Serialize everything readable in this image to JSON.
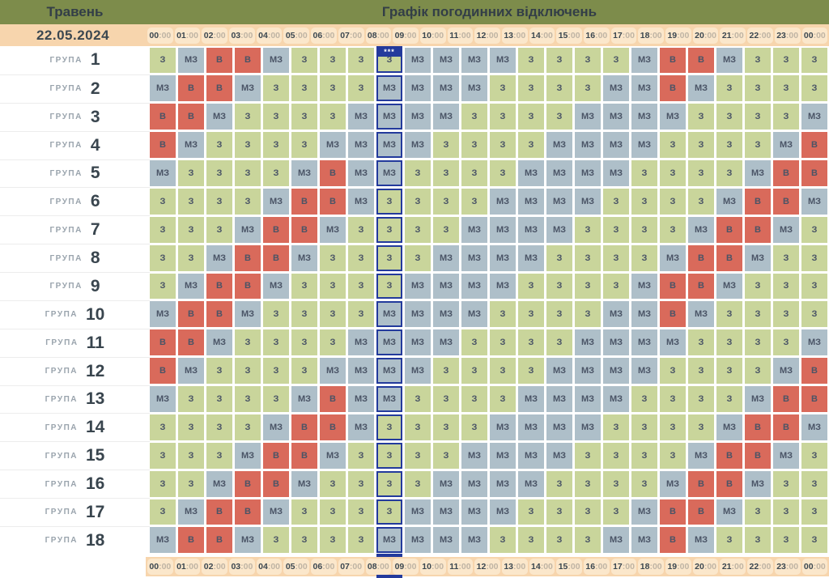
{
  "header": {
    "month": "Травень",
    "title": "Графік погодинних відключень"
  },
  "date": "22.05.2024",
  "hours": [
    "00:00",
    "01:00",
    "02:00",
    "03:00",
    "04:00",
    "05:00",
    "06:00",
    "07:00",
    "08:00",
    "09:00",
    "10:00",
    "11:00",
    "12:00",
    "13:00",
    "14:00",
    "15:00",
    "16:00",
    "17:00",
    "18:00",
    "19:00",
    "20:00",
    "21:00",
    "22:00",
    "23:00",
    "00:00"
  ],
  "highlight": {
    "hour_start": "08:00",
    "column_index": 8,
    "symbol": "***"
  },
  "group_label": "ГРУПА",
  "cell_values": {
    "available": "З",
    "maybe": "МЗ",
    "off": "В"
  },
  "groups": [
    {
      "number": "1",
      "cells": [
        "З",
        "МЗ",
        "В",
        "В",
        "МЗ",
        "З",
        "З",
        "З",
        "З",
        "МЗ",
        "МЗ",
        "МЗ",
        "МЗ",
        "З",
        "З",
        "З",
        "З",
        "МЗ",
        "В",
        "В",
        "МЗ",
        "З",
        "З",
        "З"
      ]
    },
    {
      "number": "2",
      "cells": [
        "МЗ",
        "В",
        "В",
        "МЗ",
        "З",
        "З",
        "З",
        "З",
        "МЗ",
        "МЗ",
        "МЗ",
        "МЗ",
        "З",
        "З",
        "З",
        "З",
        "МЗ",
        "МЗ",
        "В",
        "МЗ",
        "З",
        "З",
        "З",
        "З"
      ]
    },
    {
      "number": "3",
      "cells": [
        "В",
        "В",
        "МЗ",
        "З",
        "З",
        "З",
        "З",
        "МЗ",
        "МЗ",
        "МЗ",
        "МЗ",
        "З",
        "З",
        "З",
        "З",
        "МЗ",
        "МЗ",
        "МЗ",
        "МЗ",
        "З",
        "З",
        "З",
        "З",
        "МЗ"
      ]
    },
    {
      "number": "4",
      "cells": [
        "В",
        "МЗ",
        "З",
        "З",
        "З",
        "З",
        "МЗ",
        "МЗ",
        "МЗ",
        "МЗ",
        "З",
        "З",
        "З",
        "З",
        "МЗ",
        "МЗ",
        "МЗ",
        "МЗ",
        "З",
        "З",
        "З",
        "З",
        "МЗ",
        "В"
      ]
    },
    {
      "number": "5",
      "cells": [
        "МЗ",
        "З",
        "З",
        "З",
        "З",
        "МЗ",
        "В",
        "МЗ",
        "МЗ",
        "З",
        "З",
        "З",
        "З",
        "МЗ",
        "МЗ",
        "МЗ",
        "МЗ",
        "З",
        "З",
        "З",
        "З",
        "МЗ",
        "В",
        "В"
      ]
    },
    {
      "number": "6",
      "cells": [
        "З",
        "З",
        "З",
        "З",
        "МЗ",
        "В",
        "В",
        "МЗ",
        "З",
        "З",
        "З",
        "З",
        "МЗ",
        "МЗ",
        "МЗ",
        "МЗ",
        "З",
        "З",
        "З",
        "З",
        "МЗ",
        "В",
        "В",
        "МЗ"
      ]
    },
    {
      "number": "7",
      "cells": [
        "З",
        "З",
        "З",
        "МЗ",
        "В",
        "В",
        "МЗ",
        "З",
        "З",
        "З",
        "З",
        "МЗ",
        "МЗ",
        "МЗ",
        "МЗ",
        "З",
        "З",
        "З",
        "З",
        "МЗ",
        "В",
        "В",
        "МЗ",
        "З"
      ]
    },
    {
      "number": "8",
      "cells": [
        "З",
        "З",
        "МЗ",
        "В",
        "В",
        "МЗ",
        "З",
        "З",
        "З",
        "З",
        "МЗ",
        "МЗ",
        "МЗ",
        "МЗ",
        "З",
        "З",
        "З",
        "З",
        "МЗ",
        "В",
        "В",
        "МЗ",
        "З",
        "З"
      ]
    },
    {
      "number": "9",
      "cells": [
        "З",
        "МЗ",
        "В",
        "В",
        "МЗ",
        "З",
        "З",
        "З",
        "З",
        "МЗ",
        "МЗ",
        "МЗ",
        "МЗ",
        "З",
        "З",
        "З",
        "З",
        "МЗ",
        "В",
        "В",
        "МЗ",
        "З",
        "З",
        "З"
      ]
    },
    {
      "number": "10",
      "cells": [
        "МЗ",
        "В",
        "В",
        "МЗ",
        "З",
        "З",
        "З",
        "З",
        "МЗ",
        "МЗ",
        "МЗ",
        "МЗ",
        "З",
        "З",
        "З",
        "З",
        "МЗ",
        "МЗ",
        "В",
        "МЗ",
        "З",
        "З",
        "З",
        "З"
      ]
    },
    {
      "number": "11",
      "cells": [
        "В",
        "В",
        "МЗ",
        "З",
        "З",
        "З",
        "З",
        "МЗ",
        "МЗ",
        "МЗ",
        "МЗ",
        "З",
        "З",
        "З",
        "З",
        "МЗ",
        "МЗ",
        "МЗ",
        "МЗ",
        "З",
        "З",
        "З",
        "З",
        "МЗ"
      ]
    },
    {
      "number": "12",
      "cells": [
        "В",
        "МЗ",
        "З",
        "З",
        "З",
        "З",
        "МЗ",
        "МЗ",
        "МЗ",
        "МЗ",
        "З",
        "З",
        "З",
        "З",
        "МЗ",
        "МЗ",
        "МЗ",
        "МЗ",
        "З",
        "З",
        "З",
        "З",
        "МЗ",
        "В"
      ]
    },
    {
      "number": "13",
      "cells": [
        "МЗ",
        "З",
        "З",
        "З",
        "З",
        "МЗ",
        "В",
        "МЗ",
        "МЗ",
        "З",
        "З",
        "З",
        "З",
        "МЗ",
        "МЗ",
        "МЗ",
        "МЗ",
        "З",
        "З",
        "З",
        "З",
        "МЗ",
        "В",
        "В"
      ]
    },
    {
      "number": "14",
      "cells": [
        "З",
        "З",
        "З",
        "З",
        "МЗ",
        "В",
        "В",
        "МЗ",
        "З",
        "З",
        "З",
        "З",
        "МЗ",
        "МЗ",
        "МЗ",
        "МЗ",
        "З",
        "З",
        "З",
        "З",
        "МЗ",
        "В",
        "В",
        "МЗ"
      ]
    },
    {
      "number": "15",
      "cells": [
        "З",
        "З",
        "З",
        "МЗ",
        "В",
        "В",
        "МЗ",
        "З",
        "З",
        "З",
        "З",
        "МЗ",
        "МЗ",
        "МЗ",
        "МЗ",
        "З",
        "З",
        "З",
        "З",
        "МЗ",
        "В",
        "В",
        "МЗ",
        "З"
      ]
    },
    {
      "number": "16",
      "cells": [
        "З",
        "З",
        "МЗ",
        "В",
        "В",
        "МЗ",
        "З",
        "З",
        "З",
        "З",
        "МЗ",
        "МЗ",
        "МЗ",
        "МЗ",
        "З",
        "З",
        "З",
        "З",
        "МЗ",
        "В",
        "В",
        "МЗ",
        "З",
        "З"
      ]
    },
    {
      "number": "17",
      "cells": [
        "З",
        "МЗ",
        "В",
        "В",
        "МЗ",
        "З",
        "З",
        "З",
        "З",
        "МЗ",
        "МЗ",
        "МЗ",
        "МЗ",
        "З",
        "З",
        "З",
        "З",
        "МЗ",
        "В",
        "В",
        "МЗ",
        "З",
        "З",
        "З"
      ]
    },
    {
      "number": "18",
      "cells": [
        "МЗ",
        "В",
        "В",
        "МЗ",
        "З",
        "З",
        "З",
        "З",
        "МЗ",
        "МЗ",
        "МЗ",
        "МЗ",
        "З",
        "З",
        "З",
        "З",
        "МЗ",
        "МЗ",
        "В",
        "МЗ",
        "З",
        "З",
        "З",
        "З"
      ]
    }
  ],
  "colors": {
    "header_bg": "#7d8c4b",
    "header_text": "#333e47",
    "timebar_bg": "#f7d5ad",
    "chip_bg": "#fbe7cb",
    "chip_hour_text": "#3b4750",
    "chip_min_text": "#bfb4a4",
    "cell_on_bg": "#c9d59b",
    "cell_maybe_bg": "#aebfc9",
    "cell_off_bg": "#d96a5b",
    "cell_text": "#4a5466",
    "highlight_color": "#233a9c",
    "group_label_text": "#9aa4ad",
    "group_number_text": "#39454e"
  }
}
